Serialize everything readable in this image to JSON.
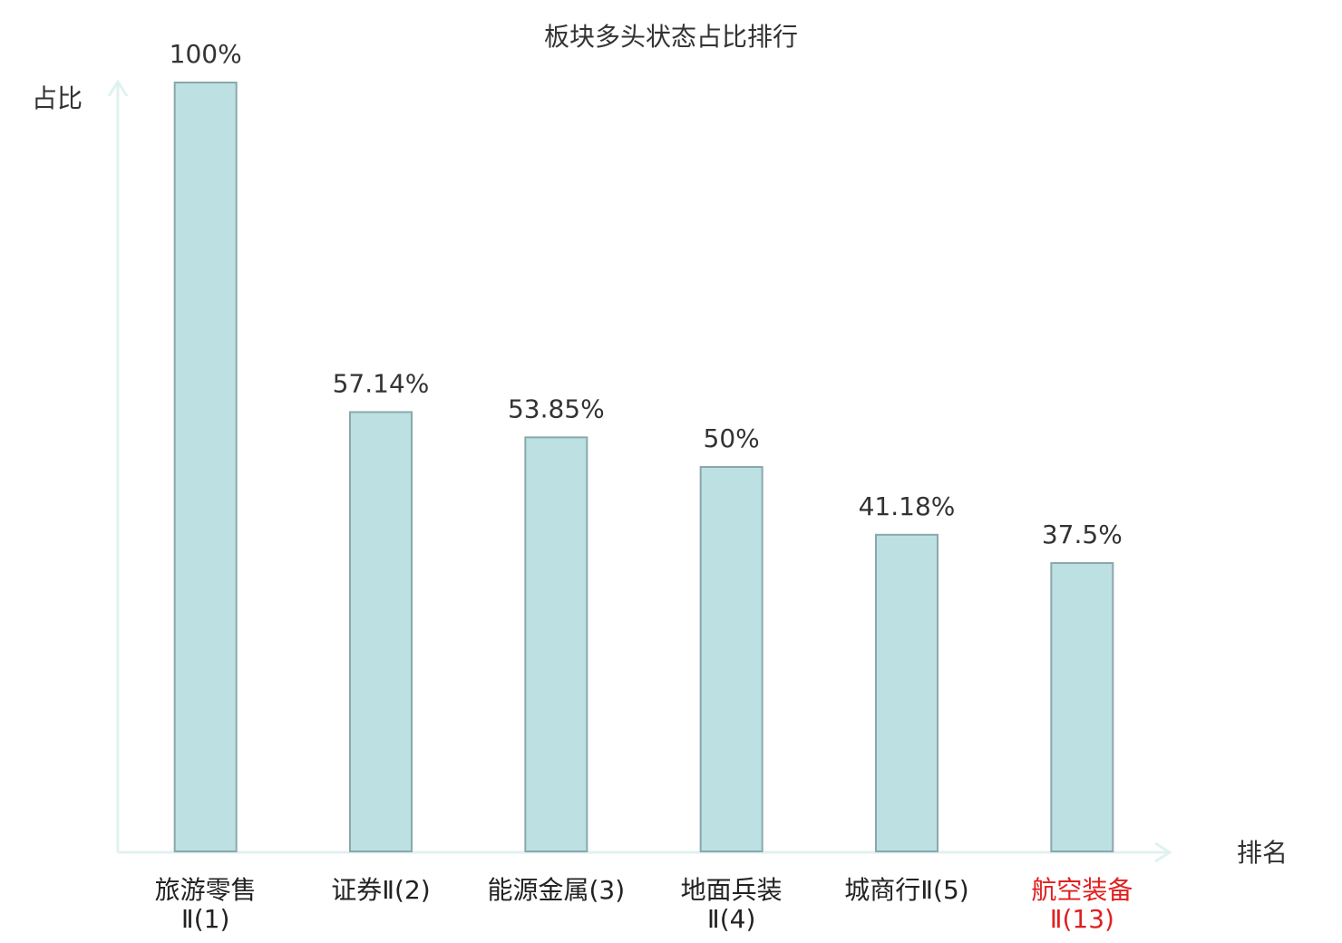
{
  "chart_data": {
    "type": "bar",
    "title": "板块多头状态占比排行",
    "y_label": "占比",
    "x_label": "排名",
    "categories": [
      "旅游零售\nⅡ(1)",
      "证券Ⅱ(2)",
      "能源金属(3)",
      "地面兵装\nⅡ(4)",
      "城商行Ⅱ(5)",
      "航空装备\nⅡ(13)"
    ],
    "category_colors": [
      "#222222",
      "#222222",
      "#222222",
      "#222222",
      "#222222",
      "#e02020"
    ],
    "values": [
      100,
      57.14,
      53.85,
      50,
      41.18,
      37.5
    ],
    "value_labels": [
      "100%",
      "57.14%",
      "53.85%",
      "50%",
      "41.18%",
      "37.5%"
    ],
    "color": "#bde0e3",
    "edge_color": "#8aa8ab",
    "axis_color": "#e0f2ef",
    "ylim": [
      0,
      100
    ]
  }
}
